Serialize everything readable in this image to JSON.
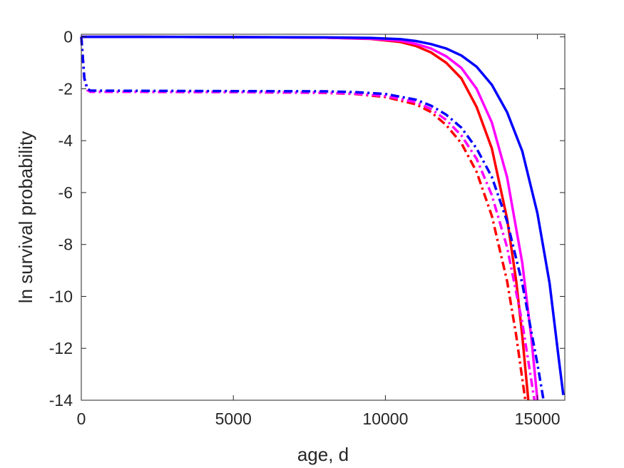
{
  "chart_data": {
    "type": "line",
    "title": "",
    "xlabel": "age, d",
    "ylabel": "ln survival probability",
    "xlim": [
      0,
      15900
    ],
    "ylim": [
      -14,
      0.1
    ],
    "xticks": [
      0,
      5000,
      10000,
      15000
    ],
    "xtick_labels": [
      "0",
      "5000",
      "10000",
      "15000"
    ],
    "yticks": [
      0,
      -2,
      -4,
      -6,
      -8,
      -10,
      -12,
      -14
    ],
    "ytick_labels": [
      "0",
      "-2",
      "-4",
      "-6",
      "-8",
      "-10",
      "-12",
      "-14"
    ],
    "grid": false,
    "legend": null,
    "series": [
      {
        "color": "#ff0000",
        "style": "solid",
        "x": [
          0,
          2000,
          5000,
          8000,
          9500,
          10500,
          11000,
          11500,
          12000,
          12500,
          13000,
          13500,
          14000,
          14300,
          14500,
          14700
        ],
        "y": [
          0,
          0,
          -0.01,
          -0.03,
          -0.08,
          -0.2,
          -0.35,
          -0.6,
          -1.0,
          -1.6,
          -2.7,
          -4.3,
          -7.0,
          -9.4,
          -11.5,
          -14
        ]
      },
      {
        "color": "#ff00ff",
        "style": "solid",
        "x": [
          0,
          2000,
          5000,
          8000,
          9500,
          10500,
          11000,
          11500,
          12000,
          12500,
          13000,
          13500,
          14000,
          14500,
          14800,
          15000
        ],
        "y": [
          0,
          0,
          -0.01,
          -0.03,
          -0.07,
          -0.15,
          -0.27,
          -0.45,
          -0.75,
          -1.2,
          -2.0,
          -3.3,
          -5.4,
          -8.7,
          -11.6,
          -14
        ]
      },
      {
        "color": "#0000ff",
        "style": "solid",
        "x": [
          0,
          2000,
          5000,
          8000,
          9500,
          10500,
          11000,
          11500,
          12000,
          12500,
          13000,
          13500,
          14000,
          14500,
          15000,
          15400,
          15700,
          15850
        ],
        "y": [
          0,
          0,
          -0.01,
          -0.02,
          -0.04,
          -0.09,
          -0.16,
          -0.28,
          -0.45,
          -0.72,
          -1.15,
          -1.85,
          -2.9,
          -4.4,
          -6.8,
          -9.5,
          -12.4,
          -13.8
        ]
      },
      {
        "color": "#ff0000",
        "style": "dashdot",
        "x": [
          0,
          50,
          100,
          200,
          300,
          2000,
          5000,
          8000,
          9000,
          10000,
          11000,
          11500,
          12000,
          12500,
          13000,
          13500,
          14000,
          14300,
          14600
        ],
        "y": [
          0,
          -0.8,
          -1.6,
          -2.05,
          -2.12,
          -2.12,
          -2.13,
          -2.16,
          -2.2,
          -2.32,
          -2.6,
          -2.9,
          -3.4,
          -4.1,
          -5.2,
          -6.9,
          -9.4,
          -11.5,
          -14
        ]
      },
      {
        "color": "#ff00ff",
        "style": "dashdot",
        "x": [
          0,
          50,
          100,
          200,
          300,
          2000,
          5000,
          8000,
          9000,
          10000,
          11000,
          11500,
          12000,
          12500,
          13000,
          13500,
          14000,
          14500,
          14900
        ],
        "y": [
          0,
          -0.8,
          -1.6,
          -2.05,
          -2.12,
          -2.12,
          -2.13,
          -2.15,
          -2.19,
          -2.28,
          -2.52,
          -2.78,
          -3.2,
          -3.8,
          -4.7,
          -6.1,
          -8.1,
          -11.0,
          -14
        ]
      },
      {
        "color": "#0000ff",
        "style": "dashdot",
        "x": [
          0,
          50,
          100,
          200,
          300,
          2000,
          5000,
          8000,
          9000,
          10000,
          11000,
          11500,
          12000,
          12500,
          13000,
          13500,
          14000,
          14500,
          15000,
          15200
        ],
        "y": [
          0,
          -0.8,
          -1.6,
          -2.0,
          -2.07,
          -2.08,
          -2.09,
          -2.1,
          -2.13,
          -2.2,
          -2.42,
          -2.65,
          -3.0,
          -3.5,
          -4.3,
          -5.4,
          -7.1,
          -9.5,
          -12.6,
          -14
        ]
      }
    ]
  }
}
